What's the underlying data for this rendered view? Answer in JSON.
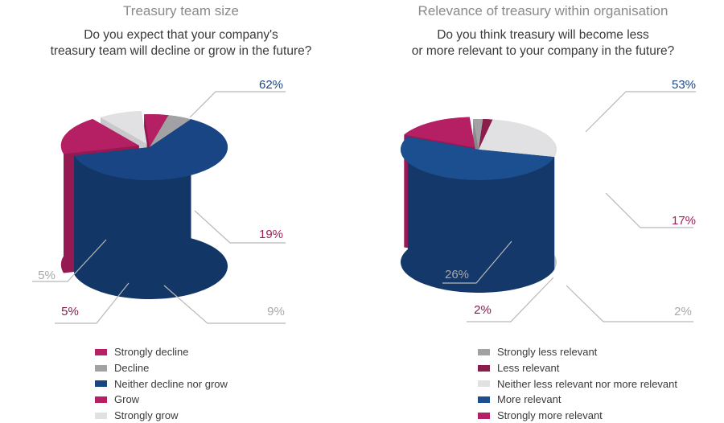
{
  "colors": {
    "strong_decline": "#b51f64",
    "decline": "#a2a2a5",
    "neutral": "#1a4585",
    "grow": "#b51f64",
    "strong_grow": "#e1e1e3",
    "less_relevant": "#8a1d4c",
    "more_relevant": "#1b4f8f",
    "label_grey": "#a8a8a8",
    "label_purple": "#7a1d4a",
    "label_blue": "#1a4585",
    "label_magenta": "#a21c5c"
  },
  "chart_data": [
    {
      "type": "pie",
      "title": "Treasury team size",
      "subtitle": [
        "Do you expect that your company's",
        "treasury team will decline or grow in the future?"
      ],
      "slices": [
        {
          "name": "Strongly decline",
          "value": 5,
          "label": "5%",
          "color": "#b51f64",
          "side": "#8e1a4d",
          "label_color": "#7a1d4a"
        },
        {
          "name": "Decline",
          "value": 5,
          "label": "5%",
          "color": "#a2a2a5",
          "side": "#808083",
          "label_color": "#a8a8a8"
        },
        {
          "name": "Neither decline nor grow",
          "value": 62,
          "label": "62%",
          "color": "#1a4585",
          "side": "#123666",
          "label_color": "#1a4585"
        },
        {
          "name": "Grow",
          "value": 19,
          "label": "19%",
          "color": "#b51f64",
          "side": "#941a52",
          "label_color": "#a21c5c"
        },
        {
          "name": "Strongly grow",
          "value": 9,
          "label": "9%",
          "color": "#e1e1e3",
          "side": "#c9c9cb",
          "label_color": "#a8a8a8"
        }
      ],
      "legend": [
        "Strongly decline",
        "Decline",
        "Neither decline nor grow",
        "Grow",
        "Strongly grow"
      ],
      "legend_colors": [
        "#b51f64",
        "#a2a2a5",
        "#1a4585",
        "#b51f64",
        "#e1e1e3"
      ]
    },
    {
      "type": "pie",
      "title": "Relevance of treasury within organisation",
      "subtitle": [
        "Do you think treasury will become less",
        "or more relevant to your company in the future?"
      ],
      "slices": [
        {
          "name": "Strongly less relevant",
          "value": 2,
          "label": "2%",
          "color": "#a2a2a5",
          "side": "#8a8a8d",
          "label_color": "#a8a8a8"
        },
        {
          "name": "Less relevant",
          "value": 2,
          "label": "2%",
          "color": "#8a1d4c",
          "side": "#6e173c",
          "label_color": "#7a1d4a"
        },
        {
          "name": "Neither less relevant nor more relevant",
          "value": 26,
          "label": "26%",
          "color": "#e1e1e3",
          "side": "#c2c2c5",
          "label_color": "#a8a8a8"
        },
        {
          "name": "More relevant",
          "value": 53,
          "label": "53%",
          "color": "#1b4f8f",
          "side": "#14386a",
          "label_color": "#1a4585"
        },
        {
          "name": "Strongly more relevant",
          "value": 17,
          "label": "17%",
          "color": "#b51f64",
          "side": "#971a54",
          "label_color": "#a21c5c"
        }
      ],
      "legend": [
        "Strongly less relevant",
        "Less relevant",
        "Neither less relevant nor more relevant",
        "More relevant",
        "Strongly more relevant"
      ],
      "legend_colors": [
        "#a2a2a5",
        "#8a1d4c",
        "#e1e1e3",
        "#1b4f8f",
        "#b51f64"
      ]
    }
  ]
}
